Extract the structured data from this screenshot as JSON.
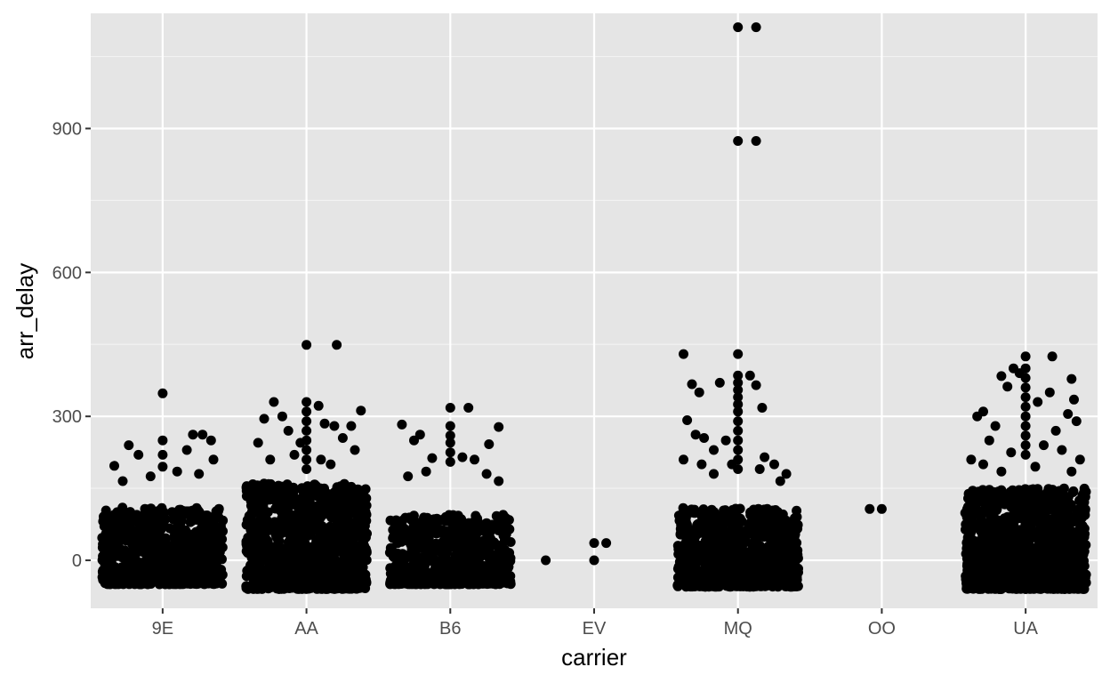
{
  "chart_data": {
    "type": "scatter",
    "title": "",
    "xlabel": "carrier",
    "ylabel": "arr_delay",
    "categories": [
      "9E",
      "AA",
      "B6",
      "EV",
      "MQ",
      "OO",
      "UA"
    ],
    "ylim": [
      -100,
      1140
    ],
    "yticks": [
      0,
      300,
      600,
      900
    ],
    "ytick_labels": [
      "0",
      "300",
      "600",
      "900"
    ],
    "grid": true,
    "legend": "none",
    "jitter": "horizontal",
    "colors": {
      "panel": "#e5e5e5",
      "grid_major": "#ffffff",
      "grid_minor": "#f2f2f2",
      "point": "#000000",
      "tick_label": "#4d4d4d",
      "tick": "#333333"
    },
    "dense_bands": [
      {
        "category": "9E",
        "low": -50,
        "high": 110,
        "count": 700
      },
      {
        "category": "AA",
        "low": -60,
        "high": 160,
        "count": 1100
      },
      {
        "category": "B6",
        "low": -50,
        "high": 95,
        "count": 650
      },
      {
        "category": "MQ",
        "low": -55,
        "high": 110,
        "count": 850
      },
      {
        "category": "UA",
        "low": -60,
        "high": 150,
        "count": 1100
      }
    ],
    "points": [
      {
        "category": "9E",
        "offset": 0.0,
        "y": 348
      },
      {
        "category": "9E",
        "offset": -0.28,
        "y": 240
      },
      {
        "category": "9E",
        "offset": 0.25,
        "y": 262
      },
      {
        "category": "9E",
        "offset": 0.4,
        "y": 250
      },
      {
        "category": "9E",
        "offset": 0.2,
        "y": 230
      },
      {
        "category": "9E",
        "offset": -0.4,
        "y": 197
      },
      {
        "category": "9E",
        "offset": 0.42,
        "y": 210
      },
      {
        "category": "9E",
        "offset": -0.2,
        "y": 220
      },
      {
        "category": "9E",
        "offset": 0.33,
        "y": 262
      },
      {
        "category": "9E",
        "offset": 0.0,
        "y": 250
      },
      {
        "category": "9E",
        "offset": 0.0,
        "y": 220
      },
      {
        "category": "9E",
        "offset": 0.0,
        "y": 195
      },
      {
        "category": "9E",
        "offset": -0.1,
        "y": 175
      },
      {
        "category": "9E",
        "offset": 0.12,
        "y": 185
      },
      {
        "category": "9E",
        "offset": 0.3,
        "y": 180
      },
      {
        "category": "9E",
        "offset": -0.33,
        "y": 165
      },
      {
        "category": "AA",
        "offset": 0.0,
        "y": 449
      },
      {
        "category": "AA",
        "offset": 0.25,
        "y": 449
      },
      {
        "category": "AA",
        "offset": -0.27,
        "y": 330
      },
      {
        "category": "AA",
        "offset": 0.1,
        "y": 322
      },
      {
        "category": "AA",
        "offset": -0.35,
        "y": 295
      },
      {
        "category": "AA",
        "offset": -0.2,
        "y": 300
      },
      {
        "category": "AA",
        "offset": 0.45,
        "y": 312
      },
      {
        "category": "AA",
        "offset": 0.15,
        "y": 285
      },
      {
        "category": "AA",
        "offset": 0.37,
        "y": 280
      },
      {
        "category": "AA",
        "offset": 0.23,
        "y": 280
      },
      {
        "category": "AA",
        "offset": -0.15,
        "y": 270
      },
      {
        "category": "AA",
        "offset": -0.05,
        "y": 245
      },
      {
        "category": "AA",
        "offset": 0.3,
        "y": 255
      },
      {
        "category": "AA",
        "offset": -0.4,
        "y": 245
      },
      {
        "category": "AA",
        "offset": 0.0,
        "y": 330
      },
      {
        "category": "AA",
        "offset": 0.0,
        "y": 310
      },
      {
        "category": "AA",
        "offset": 0.0,
        "y": 290
      },
      {
        "category": "AA",
        "offset": 0.0,
        "y": 270
      },
      {
        "category": "AA",
        "offset": 0.0,
        "y": 250
      },
      {
        "category": "AA",
        "offset": 0.0,
        "y": 230
      },
      {
        "category": "AA",
        "offset": 0.0,
        "y": 210
      },
      {
        "category": "AA",
        "offset": 0.0,
        "y": 190
      },
      {
        "category": "AA",
        "offset": -0.1,
        "y": 220
      },
      {
        "category": "AA",
        "offset": 0.12,
        "y": 210
      },
      {
        "category": "AA",
        "offset": 0.4,
        "y": 230
      },
      {
        "category": "AA",
        "offset": -0.3,
        "y": 210
      },
      {
        "category": "AA",
        "offset": 0.2,
        "y": 200
      },
      {
        "category": "B6",
        "offset": 0.0,
        "y": 318
      },
      {
        "category": "B6",
        "offset": 0.15,
        "y": 318
      },
      {
        "category": "B6",
        "offset": 0.4,
        "y": 278
      },
      {
        "category": "B6",
        "offset": -0.4,
        "y": 283
      },
      {
        "category": "B6",
        "offset": 0.0,
        "y": 280
      },
      {
        "category": "B6",
        "offset": 0.0,
        "y": 260
      },
      {
        "category": "B6",
        "offset": 0.0,
        "y": 245
      },
      {
        "category": "B6",
        "offset": 0.0,
        "y": 225
      },
      {
        "category": "B6",
        "offset": 0.0,
        "y": 205
      },
      {
        "category": "B6",
        "offset": -0.25,
        "y": 262
      },
      {
        "category": "B6",
        "offset": -0.3,
        "y": 250
      },
      {
        "category": "B6",
        "offset": 0.32,
        "y": 242
      },
      {
        "category": "B6",
        "offset": -0.15,
        "y": 213
      },
      {
        "category": "B6",
        "offset": 0.1,
        "y": 215
      },
      {
        "category": "B6",
        "offset": 0.2,
        "y": 210
      },
      {
        "category": "B6",
        "offset": 0.3,
        "y": 180
      },
      {
        "category": "B6",
        "offset": -0.2,
        "y": 185
      },
      {
        "category": "B6",
        "offset": -0.35,
        "y": 175
      },
      {
        "category": "B6",
        "offset": 0.4,
        "y": 165
      },
      {
        "category": "EV",
        "offset": -0.4,
        "y": 0
      },
      {
        "category": "EV",
        "offset": 0.0,
        "y": 0
      },
      {
        "category": "EV",
        "offset": 0.0,
        "y": 36
      },
      {
        "category": "EV",
        "offset": 0.1,
        "y": 36
      },
      {
        "category": "MQ",
        "offset": 0.0,
        "y": 1111
      },
      {
        "category": "MQ",
        "offset": 0.15,
        "y": 1111
      },
      {
        "category": "MQ",
        "offset": 0.0,
        "y": 874
      },
      {
        "category": "MQ",
        "offset": 0.15,
        "y": 874
      },
      {
        "category": "MQ",
        "offset": 0.0,
        "y": 430
      },
      {
        "category": "MQ",
        "offset": -0.45,
        "y": 430
      },
      {
        "category": "MQ",
        "offset": -0.38,
        "y": 367
      },
      {
        "category": "MQ",
        "offset": -0.32,
        "y": 350
      },
      {
        "category": "MQ",
        "offset": -0.15,
        "y": 370
      },
      {
        "category": "MQ",
        "offset": 0.1,
        "y": 385
      },
      {
        "category": "MQ",
        "offset": 0.15,
        "y": 365
      },
      {
        "category": "MQ",
        "offset": 0.2,
        "y": 318
      },
      {
        "category": "MQ",
        "offset": 0.0,
        "y": 385
      },
      {
        "category": "MQ",
        "offset": 0.0,
        "y": 370
      },
      {
        "category": "MQ",
        "offset": 0.0,
        "y": 355
      },
      {
        "category": "MQ",
        "offset": 0.0,
        "y": 340
      },
      {
        "category": "MQ",
        "offset": 0.0,
        "y": 325
      },
      {
        "category": "MQ",
        "offset": 0.0,
        "y": 310
      },
      {
        "category": "MQ",
        "offset": 0.0,
        "y": 290
      },
      {
        "category": "MQ",
        "offset": 0.0,
        "y": 270
      },
      {
        "category": "MQ",
        "offset": 0.0,
        "y": 250
      },
      {
        "category": "MQ",
        "offset": 0.0,
        "y": 230
      },
      {
        "category": "MQ",
        "offset": 0.0,
        "y": 210
      },
      {
        "category": "MQ",
        "offset": 0.0,
        "y": 190
      },
      {
        "category": "MQ",
        "offset": -0.42,
        "y": 292
      },
      {
        "category": "MQ",
        "offset": -0.35,
        "y": 262
      },
      {
        "category": "MQ",
        "offset": -0.28,
        "y": 255
      },
      {
        "category": "MQ",
        "offset": -0.1,
        "y": 250
      },
      {
        "category": "MQ",
        "offset": -0.45,
        "y": 210
      },
      {
        "category": "MQ",
        "offset": -0.3,
        "y": 200
      },
      {
        "category": "MQ",
        "offset": -0.2,
        "y": 230
      },
      {
        "category": "MQ",
        "offset": -0.05,
        "y": 200
      },
      {
        "category": "MQ",
        "offset": 0.22,
        "y": 215
      },
      {
        "category": "MQ",
        "offset": 0.3,
        "y": 200
      },
      {
        "category": "MQ",
        "offset": 0.18,
        "y": 190
      },
      {
        "category": "MQ",
        "offset": 0.4,
        "y": 180
      },
      {
        "category": "MQ",
        "offset": -0.2,
        "y": 180
      },
      {
        "category": "MQ",
        "offset": 0.35,
        "y": 165
      },
      {
        "category": "OO",
        "offset": -0.1,
        "y": 107
      },
      {
        "category": "OO",
        "offset": 0.0,
        "y": 107
      },
      {
        "category": "UA",
        "offset": 0.0,
        "y": 425
      },
      {
        "category": "UA",
        "offset": 0.22,
        "y": 425
      },
      {
        "category": "UA",
        "offset": -0.1,
        "y": 400
      },
      {
        "category": "UA",
        "offset": 0.0,
        "y": 400
      },
      {
        "category": "UA",
        "offset": -0.05,
        "y": 390
      },
      {
        "category": "UA",
        "offset": 0.0,
        "y": 380
      },
      {
        "category": "UA",
        "offset": 0.0,
        "y": 360
      },
      {
        "category": "UA",
        "offset": 0.0,
        "y": 340
      },
      {
        "category": "UA",
        "offset": 0.0,
        "y": 320
      },
      {
        "category": "UA",
        "offset": 0.0,
        "y": 300
      },
      {
        "category": "UA",
        "offset": 0.0,
        "y": 280
      },
      {
        "category": "UA",
        "offset": 0.0,
        "y": 260
      },
      {
        "category": "UA",
        "offset": 0.0,
        "y": 240
      },
      {
        "category": "UA",
        "offset": 0.0,
        "y": 220
      },
      {
        "category": "UA",
        "offset": 0.38,
        "y": 378
      },
      {
        "category": "UA",
        "offset": -0.2,
        "y": 384
      },
      {
        "category": "UA",
        "offset": -0.15,
        "y": 362
      },
      {
        "category": "UA",
        "offset": 0.1,
        "y": 330
      },
      {
        "category": "UA",
        "offset": 0.2,
        "y": 350
      },
      {
        "category": "UA",
        "offset": 0.4,
        "y": 335
      },
      {
        "category": "UA",
        "offset": -0.4,
        "y": 300
      },
      {
        "category": "UA",
        "offset": -0.35,
        "y": 310
      },
      {
        "category": "UA",
        "offset": 0.42,
        "y": 290
      },
      {
        "category": "UA",
        "offset": 0.35,
        "y": 305
      },
      {
        "category": "UA",
        "offset": -0.25,
        "y": 280
      },
      {
        "category": "UA",
        "offset": 0.25,
        "y": 270
      },
      {
        "category": "UA",
        "offset": -0.3,
        "y": 250
      },
      {
        "category": "UA",
        "offset": 0.15,
        "y": 240
      },
      {
        "category": "UA",
        "offset": -0.45,
        "y": 210
      },
      {
        "category": "UA",
        "offset": 0.45,
        "y": 210
      },
      {
        "category": "UA",
        "offset": -0.12,
        "y": 225
      },
      {
        "category": "UA",
        "offset": 0.3,
        "y": 230
      },
      {
        "category": "UA",
        "offset": -0.35,
        "y": 200
      },
      {
        "category": "UA",
        "offset": 0.08,
        "y": 195
      },
      {
        "category": "UA",
        "offset": -0.2,
        "y": 185
      },
      {
        "category": "UA",
        "offset": 0.38,
        "y": 185
      }
    ]
  }
}
